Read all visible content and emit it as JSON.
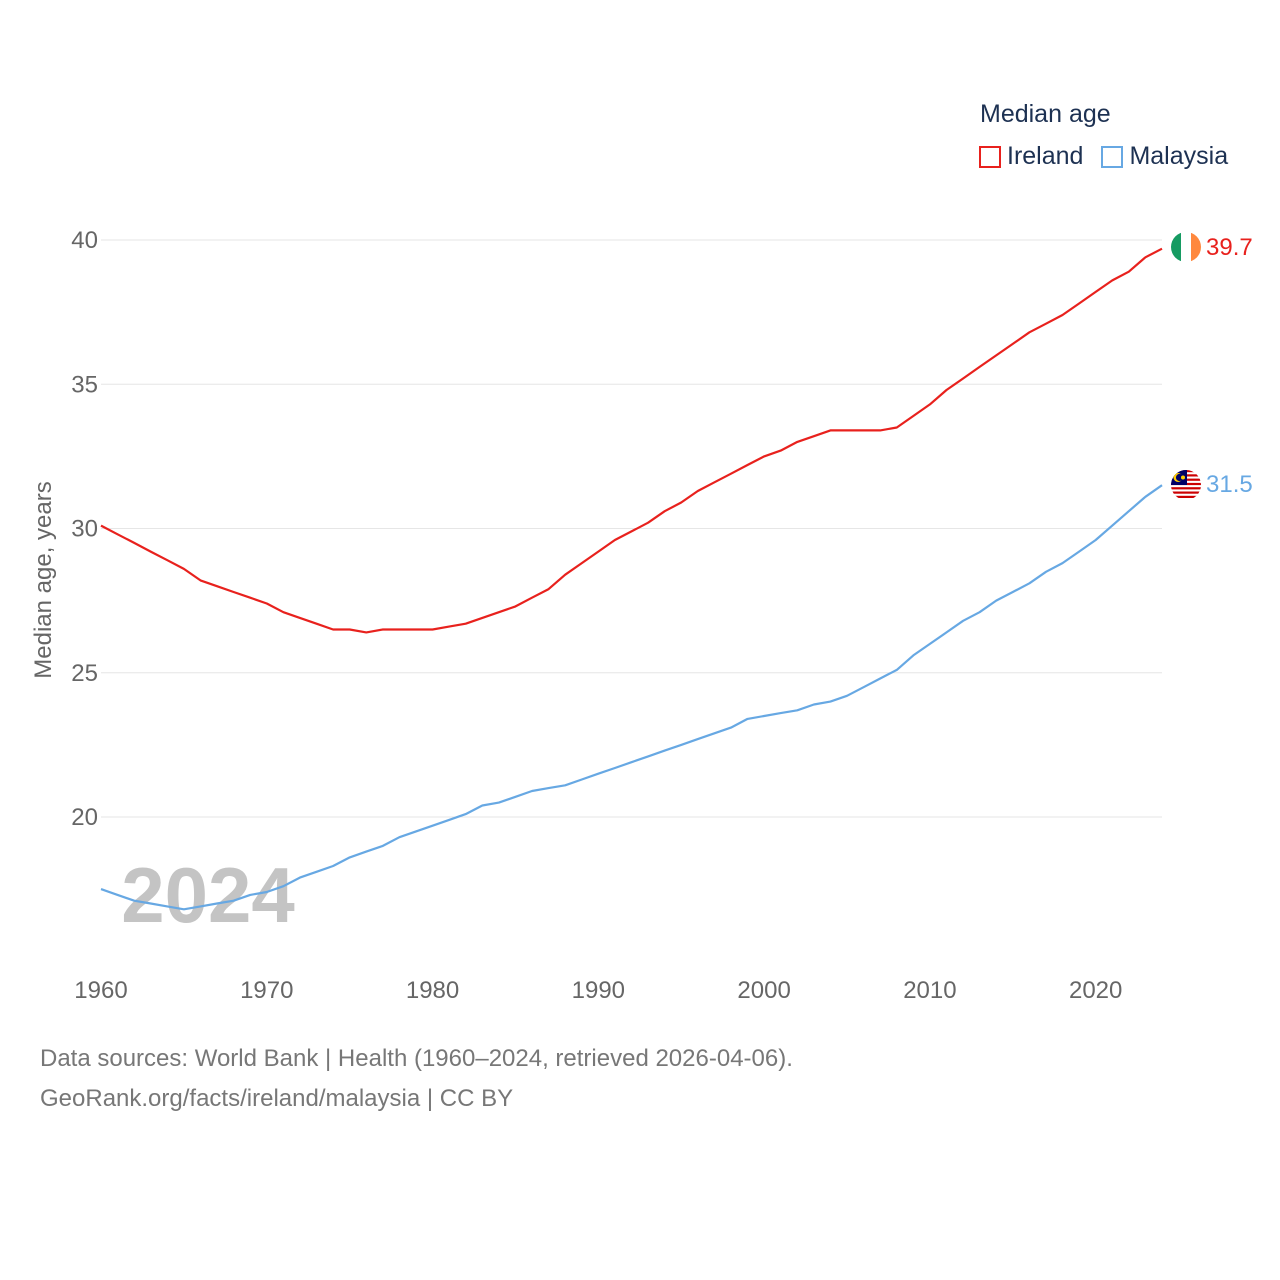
{
  "legend": {
    "title": "Median age",
    "items": [
      {
        "label": "Ireland",
        "color": "#e8211d"
      },
      {
        "label": "Malaysia",
        "color": "#67a8e3"
      }
    ]
  },
  "footer": {
    "line1": "Data sources: World Bank | Health (1960–2024, retrieved 2026-04-06).",
    "line2": "GeoRank.org/facts/ireland/malaysia | CC BY"
  },
  "chart_data": {
    "type": "line",
    "title": "Median age",
    "xlabel": "",
    "ylabel": "Median age, years",
    "year_label": "2024",
    "xlim": [
      1960,
      2024
    ],
    "ylim": [
      16,
      40
    ],
    "xticks": [
      1960,
      1970,
      1980,
      1990,
      2000,
      2010,
      2020
    ],
    "yticks": [
      20,
      25,
      30,
      35,
      40
    ],
    "grid": true,
    "x": [
      1960,
      1961,
      1962,
      1963,
      1964,
      1965,
      1966,
      1967,
      1968,
      1969,
      1970,
      1971,
      1972,
      1973,
      1974,
      1975,
      1976,
      1977,
      1978,
      1979,
      1980,
      1981,
      1982,
      1983,
      1984,
      1985,
      1986,
      1987,
      1988,
      1989,
      1990,
      1991,
      1992,
      1993,
      1994,
      1995,
      1996,
      1997,
      1998,
      1999,
      2000,
      2001,
      2002,
      2003,
      2004,
      2005,
      2006,
      2007,
      2008,
      2009,
      2010,
      2011,
      2012,
      2013,
      2014,
      2015,
      2016,
      2017,
      2018,
      2019,
      2020,
      2021,
      2022,
      2023,
      2024
    ],
    "series": [
      {
        "name": "Ireland",
        "color": "#e8211d",
        "end_label": "39.7",
        "values": [
          30.1,
          29.8,
          29.5,
          29.2,
          28.9,
          28.6,
          28.2,
          28.0,
          27.8,
          27.6,
          27.4,
          27.1,
          26.9,
          26.7,
          26.5,
          26.5,
          26.4,
          26.5,
          26.5,
          26.5,
          26.5,
          26.6,
          26.7,
          26.9,
          27.1,
          27.3,
          27.6,
          27.9,
          28.4,
          28.8,
          29.2,
          29.6,
          29.9,
          30.2,
          30.6,
          30.9,
          31.3,
          31.6,
          31.9,
          32.2,
          32.5,
          32.7,
          33.0,
          33.2,
          33.4,
          33.4,
          33.4,
          33.4,
          33.5,
          33.9,
          34.3,
          34.8,
          35.2,
          35.6,
          36.0,
          36.4,
          36.8,
          37.1,
          37.4,
          37.8,
          38.2,
          38.6,
          38.9,
          39.4,
          39.7
        ]
      },
      {
        "name": "Malaysia",
        "color": "#67a8e3",
        "end_label": "31.5",
        "values": [
          17.5,
          17.3,
          17.1,
          17.0,
          16.9,
          16.8,
          16.9,
          17.0,
          17.1,
          17.3,
          17.4,
          17.6,
          17.9,
          18.1,
          18.3,
          18.6,
          18.8,
          19.0,
          19.3,
          19.5,
          19.7,
          19.9,
          20.1,
          20.4,
          20.5,
          20.7,
          20.9,
          21.0,
          21.1,
          21.3,
          21.5,
          21.7,
          21.9,
          22.1,
          22.3,
          22.5,
          22.7,
          22.9,
          23.1,
          23.4,
          23.5,
          23.6,
          23.7,
          23.9,
          24.0,
          24.2,
          24.5,
          24.8,
          25.1,
          25.6,
          26.0,
          26.4,
          26.8,
          27.1,
          27.5,
          27.8,
          28.1,
          28.5,
          28.8,
          29.2,
          29.6,
          30.1,
          30.6,
          31.1,
          31.5
        ]
      }
    ]
  }
}
